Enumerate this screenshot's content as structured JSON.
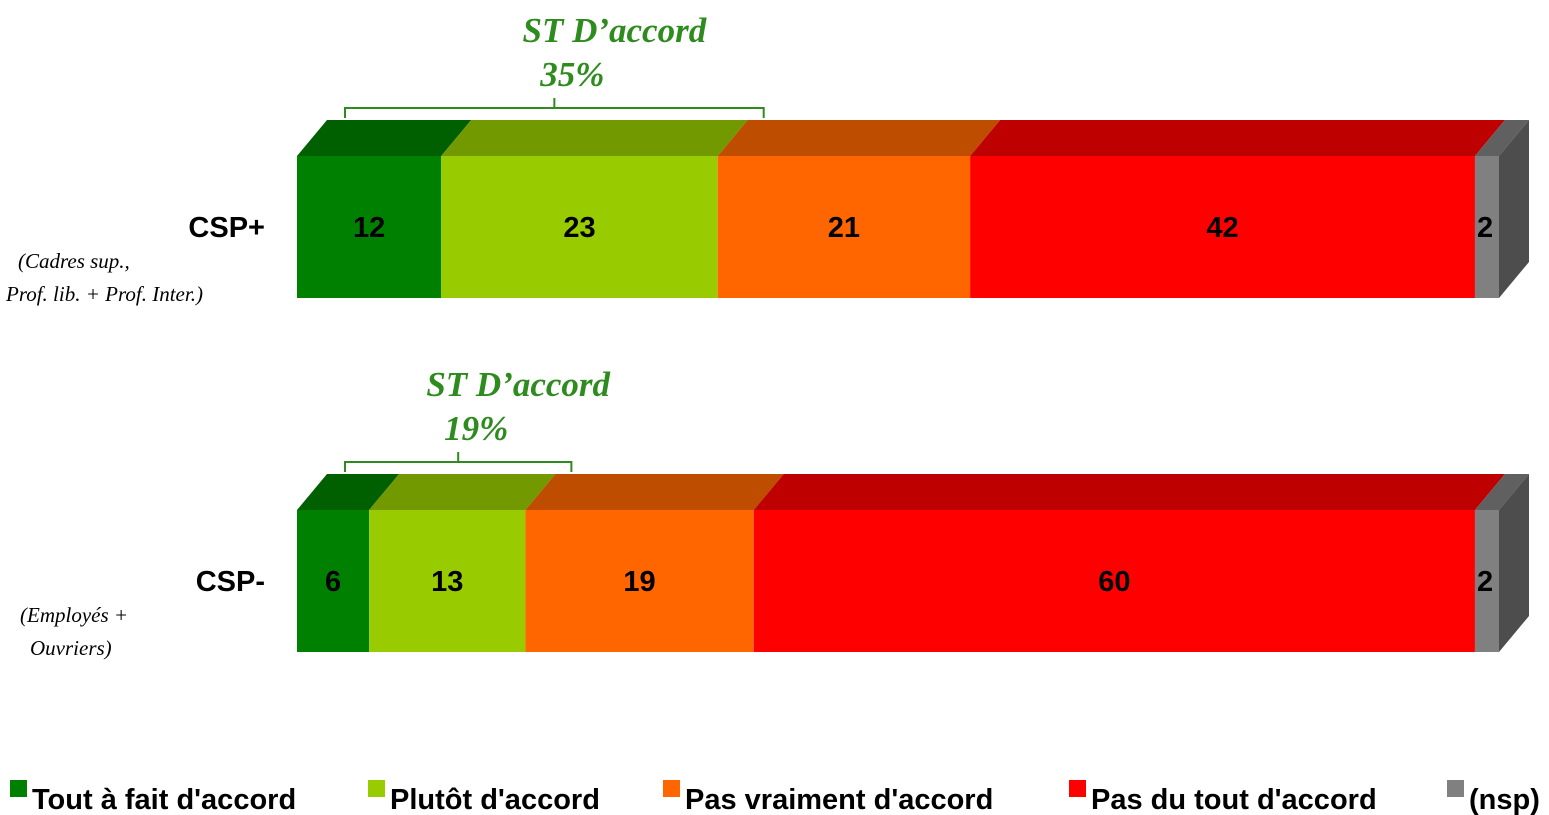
{
  "chart_data": {
    "type": "bar",
    "orientation": "horizontal-stacked",
    "categories": [
      {
        "label": "CSP+",
        "sublabel_lines": [
          "(Cadres sup.,",
          "Prof. lib. + Prof. Inter.)"
        ]
      },
      {
        "label": "CSP-",
        "sublabel_lines": [
          "(Employés +",
          "Ouvriers)"
        ]
      }
    ],
    "series": [
      {
        "name": "Tout à fait d'accord",
        "color": "#008000",
        "values": [
          12,
          6
        ]
      },
      {
        "name": "Plutôt d'accord",
        "color": "#99cc00",
        "values": [
          23,
          13
        ]
      },
      {
        "name": "Pas vraiment d'accord",
        "color": "#ff6600",
        "values": [
          21,
          19
        ]
      },
      {
        "name": "Pas du tout d'accord",
        "color": "#ff0000",
        "values": [
          42,
          60
        ]
      },
      {
        "name": "(nsp)",
        "color": "#808080",
        "values": [
          2,
          2
        ]
      }
    ],
    "subtotals": [
      {
        "title": "ST D’accord",
        "value": "35%"
      },
      {
        "title": "ST D’accord",
        "value": "19%"
      }
    ],
    "legend_position": "bottom",
    "grid": false
  }
}
